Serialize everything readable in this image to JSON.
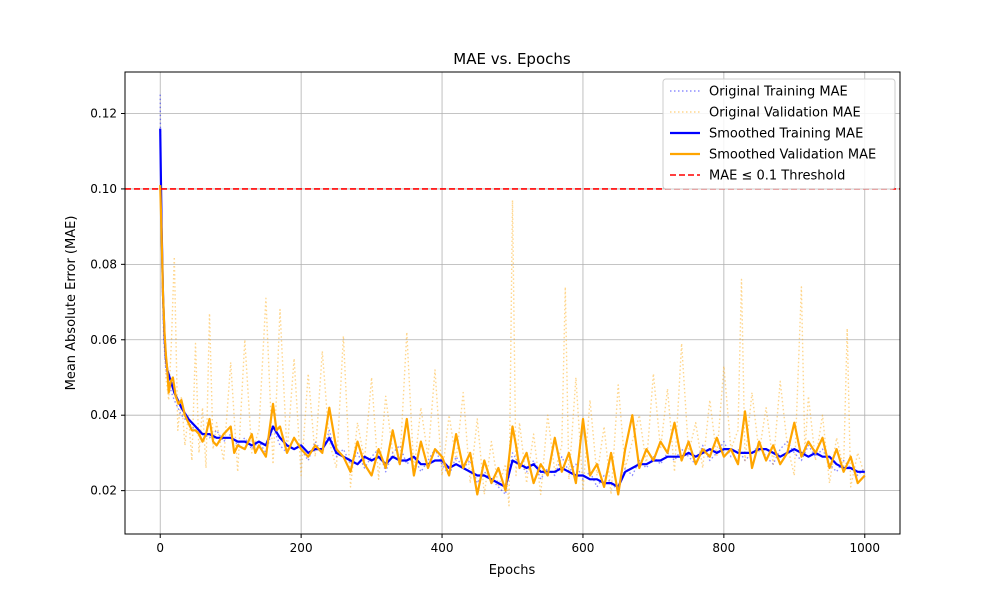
{
  "chart_data": {
    "type": "line",
    "title": "MAE vs. Epochs",
    "xlabel": "Epochs",
    "ylabel": "Mean Absolute Error (MAE)",
    "xlim": [
      -50,
      1050
    ],
    "ylim": [
      0.0085,
      0.131
    ],
    "xticks": [
      0,
      200,
      400,
      600,
      800,
      1000
    ],
    "yticks": [
      0.02,
      0.04,
      0.06,
      0.08,
      0.1,
      0.12
    ],
    "ytick_labels": [
      "0.02",
      "0.04",
      "0.06",
      "0.08",
      "0.10",
      "0.12"
    ],
    "grid": true,
    "legend_position": "top-right",
    "threshold": {
      "name": "MAE ≤ 0.1 Threshold",
      "value": 0.1,
      "color": "#ff0000"
    },
    "series": [
      {
        "name": "Original Training MAE",
        "color": "#0000ff",
        "style": "dotted-faint",
        "x": [
          0,
          1,
          3,
          5,
          8,
          12,
          16,
          20,
          25,
          30,
          35,
          40,
          50,
          60,
          70,
          80,
          90,
          100,
          110,
          120,
          130,
          140,
          150,
          160,
          170,
          180,
          190,
          200,
          210,
          220,
          230,
          240,
          250,
          260,
          270,
          280,
          290,
          300,
          310,
          320,
          330,
          340,
          350,
          360,
          370,
          380,
          390,
          400,
          410,
          420,
          430,
          440,
          450,
          460,
          470,
          480,
          490,
          500,
          510,
          520,
          530,
          540,
          550,
          560,
          570,
          580,
          590,
          600,
          610,
          620,
          630,
          640,
          650,
          660,
          670,
          680,
          690,
          700,
          710,
          720,
          730,
          740,
          750,
          760,
          770,
          780,
          790,
          800,
          810,
          820,
          830,
          840,
          850,
          860,
          870,
          880,
          890,
          900,
          910,
          920,
          930,
          940,
          950,
          960,
          970,
          980,
          990,
          1000
        ],
        "values": [
          0.125,
          0.098,
          0.075,
          0.06,
          0.052,
          0.049,
          0.046,
          0.044,
          0.042,
          0.04,
          0.039,
          0.038,
          0.036,
          0.035,
          0.034,
          0.036,
          0.033,
          0.035,
          0.032,
          0.034,
          0.031,
          0.033,
          0.03,
          0.037,
          0.032,
          0.03,
          0.034,
          0.031,
          0.028,
          0.033,
          0.03,
          0.036,
          0.029,
          0.031,
          0.027,
          0.03,
          0.026,
          0.029,
          0.031,
          0.025,
          0.03,
          0.032,
          0.027,
          0.029,
          0.025,
          0.028,
          0.031,
          0.027,
          0.024,
          0.029,
          0.026,
          0.028,
          0.022,
          0.025,
          0.023,
          0.021,
          0.019,
          0.03,
          0.027,
          0.025,
          0.028,
          0.023,
          0.026,
          0.024,
          0.029,
          0.025,
          0.027,
          0.023,
          0.025,
          0.021,
          0.024,
          0.022,
          0.02,
          0.026,
          0.024,
          0.028,
          0.026,
          0.029,
          0.027,
          0.03,
          0.028,
          0.031,
          0.029,
          0.027,
          0.032,
          0.028,
          0.03,
          0.033,
          0.029,
          0.031,
          0.028,
          0.03,
          0.032,
          0.029,
          0.027,
          0.031,
          0.033,
          0.03,
          0.028,
          0.032,
          0.029,
          0.031,
          0.027,
          0.025,
          0.028,
          0.026,
          0.024,
          0.026
        ]
      },
      {
        "name": "Original Validation MAE",
        "color": "#ffa500",
        "style": "dotted-faint",
        "x": [
          0,
          2,
          5,
          8,
          12,
          16,
          20,
          25,
          30,
          35,
          40,
          45,
          50,
          55,
          60,
          65,
          70,
          75,
          80,
          90,
          100,
          110,
          120,
          130,
          140,
          150,
          160,
          165,
          170,
          180,
          190,
          200,
          210,
          220,
          230,
          240,
          250,
          260,
          270,
          280,
          290,
          300,
          310,
          320,
          330,
          340,
          350,
          360,
          370,
          380,
          390,
          400,
          410,
          420,
          430,
          440,
          450,
          460,
          470,
          480,
          490,
          495,
          500,
          505,
          510,
          520,
          530,
          540,
          550,
          560,
          570,
          575,
          580,
          590,
          600,
          610,
          620,
          630,
          640,
          650,
          660,
          670,
          680,
          690,
          700,
          710,
          720,
          730,
          740,
          750,
          760,
          770,
          780,
          790,
          800,
          810,
          820,
          825,
          830,
          840,
          850,
          860,
          870,
          880,
          890,
          900,
          910,
          915,
          920,
          930,
          940,
          950,
          960,
          970,
          975,
          980,
          990,
          1000
        ],
        "values": [
          0.101,
          0.085,
          0.062,
          0.05,
          0.044,
          0.06,
          0.082,
          0.036,
          0.045,
          0.032,
          0.04,
          0.028,
          0.059,
          0.03,
          0.042,
          0.026,
          0.067,
          0.031,
          0.038,
          0.028,
          0.054,
          0.025,
          0.06,
          0.03,
          0.036,
          0.071,
          0.027,
          0.045,
          0.068,
          0.03,
          0.055,
          0.024,
          0.051,
          0.029,
          0.057,
          0.033,
          0.026,
          0.061,
          0.021,
          0.038,
          0.028,
          0.05,
          0.023,
          0.045,
          0.03,
          0.027,
          0.062,
          0.025,
          0.042,
          0.029,
          0.052,
          0.024,
          0.04,
          0.028,
          0.046,
          0.022,
          0.039,
          0.019,
          0.033,
          0.021,
          0.027,
          0.016,
          0.097,
          0.024,
          0.038,
          0.022,
          0.035,
          0.019,
          0.04,
          0.025,
          0.032,
          0.074,
          0.023,
          0.05,
          0.02,
          0.044,
          0.024,
          0.037,
          0.019,
          0.048,
          0.026,
          0.033,
          0.04,
          0.027,
          0.051,
          0.031,
          0.047,
          0.025,
          0.059,
          0.03,
          0.038,
          0.026,
          0.044,
          0.029,
          0.053,
          0.031,
          0.036,
          0.076,
          0.028,
          0.046,
          0.03,
          0.042,
          0.027,
          0.049,
          0.032,
          0.024,
          0.074,
          0.03,
          0.045,
          0.028,
          0.04,
          0.022,
          0.034,
          0.026,
          0.063,
          0.021,
          0.03,
          0.024
        ]
      },
      {
        "name": "Smoothed Training MAE",
        "color": "#0000ff",
        "style": "solid",
        "x": [
          0,
          2,
          4,
          6,
          8,
          10,
          15,
          20,
          25,
          30,
          40,
          50,
          60,
          70,
          80,
          90,
          100,
          110,
          120,
          130,
          140,
          150,
          160,
          170,
          180,
          190,
          200,
          210,
          220,
          230,
          240,
          250,
          260,
          270,
          280,
          290,
          300,
          310,
          320,
          330,
          340,
          350,
          360,
          370,
          380,
          390,
          400,
          410,
          420,
          430,
          440,
          450,
          460,
          470,
          480,
          490,
          500,
          510,
          520,
          530,
          540,
          550,
          560,
          570,
          580,
          590,
          600,
          610,
          620,
          630,
          640,
          650,
          660,
          670,
          680,
          690,
          700,
          710,
          720,
          730,
          740,
          750,
          760,
          770,
          780,
          790,
          800,
          810,
          820,
          830,
          840,
          850,
          860,
          870,
          880,
          890,
          900,
          910,
          920,
          930,
          940,
          950,
          960,
          970,
          980,
          990,
          1000
        ],
        "values": [
          0.116,
          0.09,
          0.072,
          0.061,
          0.055,
          0.052,
          0.049,
          0.046,
          0.044,
          0.042,
          0.039,
          0.037,
          0.035,
          0.035,
          0.034,
          0.034,
          0.034,
          0.033,
          0.033,
          0.032,
          0.033,
          0.032,
          0.037,
          0.034,
          0.032,
          0.031,
          0.032,
          0.03,
          0.031,
          0.031,
          0.034,
          0.03,
          0.029,
          0.028,
          0.027,
          0.029,
          0.028,
          0.029,
          0.027,
          0.029,
          0.028,
          0.028,
          0.029,
          0.027,
          0.027,
          0.028,
          0.028,
          0.026,
          0.027,
          0.026,
          0.025,
          0.024,
          0.024,
          0.023,
          0.022,
          0.021,
          0.028,
          0.027,
          0.026,
          0.027,
          0.025,
          0.025,
          0.025,
          0.026,
          0.025,
          0.024,
          0.024,
          0.023,
          0.023,
          0.022,
          0.022,
          0.021,
          0.025,
          0.026,
          0.027,
          0.027,
          0.028,
          0.028,
          0.029,
          0.029,
          0.029,
          0.03,
          0.029,
          0.03,
          0.031,
          0.03,
          0.031,
          0.031,
          0.03,
          0.03,
          0.03,
          0.031,
          0.031,
          0.03,
          0.029,
          0.03,
          0.031,
          0.03,
          0.029,
          0.03,
          0.029,
          0.029,
          0.027,
          0.026,
          0.026,
          0.025,
          0.025
        ]
      },
      {
        "name": "Smoothed Validation MAE",
        "color": "#ffa500",
        "style": "solid",
        "x": [
          0,
          2,
          4,
          6,
          8,
          10,
          12,
          15,
          18,
          22,
          26,
          30,
          35,
          40,
          45,
          50,
          55,
          60,
          65,
          70,
          75,
          80,
          90,
          100,
          105,
          110,
          120,
          130,
          135,
          140,
          150,
          160,
          165,
          170,
          180,
          190,
          200,
          210,
          220,
          230,
          240,
          250,
          260,
          270,
          280,
          290,
          300,
          310,
          320,
          330,
          340,
          350,
          360,
          370,
          380,
          390,
          400,
          410,
          420,
          430,
          440,
          450,
          460,
          470,
          480,
          490,
          500,
          505,
          510,
          520,
          530,
          540,
          550,
          560,
          570,
          580,
          590,
          600,
          610,
          620,
          630,
          640,
          650,
          660,
          670,
          680,
          690,
          700,
          710,
          720,
          730,
          740,
          750,
          760,
          770,
          780,
          790,
          800,
          810,
          820,
          830,
          840,
          850,
          860,
          870,
          880,
          890,
          900,
          910,
          920,
          930,
          940,
          950,
          960,
          970,
          980,
          990,
          1000
        ],
        "values": [
          0.101,
          0.088,
          0.072,
          0.062,
          0.056,
          0.052,
          0.046,
          0.049,
          0.05,
          0.045,
          0.043,
          0.044,
          0.04,
          0.038,
          0.036,
          0.036,
          0.035,
          0.033,
          0.035,
          0.039,
          0.033,
          0.032,
          0.035,
          0.037,
          0.03,
          0.032,
          0.031,
          0.035,
          0.03,
          0.032,
          0.029,
          0.043,
          0.036,
          0.037,
          0.03,
          0.034,
          0.031,
          0.029,
          0.032,
          0.03,
          0.042,
          0.031,
          0.029,
          0.025,
          0.033,
          0.027,
          0.024,
          0.031,
          0.026,
          0.036,
          0.027,
          0.039,
          0.024,
          0.033,
          0.026,
          0.031,
          0.029,
          0.024,
          0.035,
          0.026,
          0.03,
          0.019,
          0.028,
          0.022,
          0.026,
          0.02,
          0.037,
          0.032,
          0.026,
          0.03,
          0.022,
          0.027,
          0.024,
          0.034,
          0.025,
          0.03,
          0.022,
          0.039,
          0.024,
          0.027,
          0.021,
          0.03,
          0.019,
          0.031,
          0.04,
          0.026,
          0.031,
          0.028,
          0.033,
          0.03,
          0.038,
          0.028,
          0.033,
          0.027,
          0.031,
          0.029,
          0.034,
          0.029,
          0.031,
          0.027,
          0.041,
          0.026,
          0.033,
          0.028,
          0.032,
          0.027,
          0.03,
          0.038,
          0.029,
          0.033,
          0.03,
          0.034,
          0.026,
          0.031,
          0.025,
          0.029,
          0.022,
          0.024
        ]
      }
    ]
  }
}
